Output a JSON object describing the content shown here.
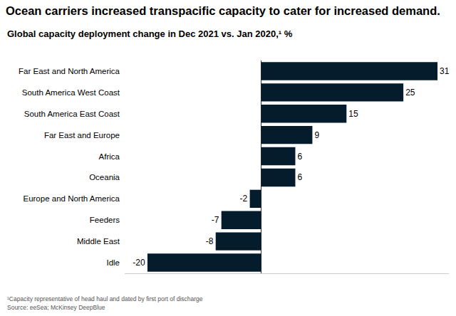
{
  "chart_data": {
    "type": "bar",
    "orientation": "horizontal",
    "title": "Ocean carriers increased transpacific capacity to cater for increased demand.",
    "subtitle": "Global capacity deployment change in Dec 2021 vs. Jan 2020,¹ %",
    "categories": [
      "Far East and North America",
      "South America West Coast",
      "South America East Coast",
      "Far East and Europe",
      "Africa",
      "Oceania",
      "Europe and North America",
      "Feeders",
      "Middle East",
      "Idle"
    ],
    "values": [
      31,
      25,
      15,
      9,
      6,
      6,
      -2,
      -7,
      -8,
      -20
    ],
    "color": "#051c2c",
    "xlim": [
      -24,
      33
    ],
    "xticks": [
      0
    ],
    "grid": false,
    "tick_labels": "y",
    "data_labels": true,
    "annotations": [
      "¹Capacity representative of head haul and dated by first port of discharge",
      "Source: eeSea; McKinsey DeepBlue"
    ]
  }
}
